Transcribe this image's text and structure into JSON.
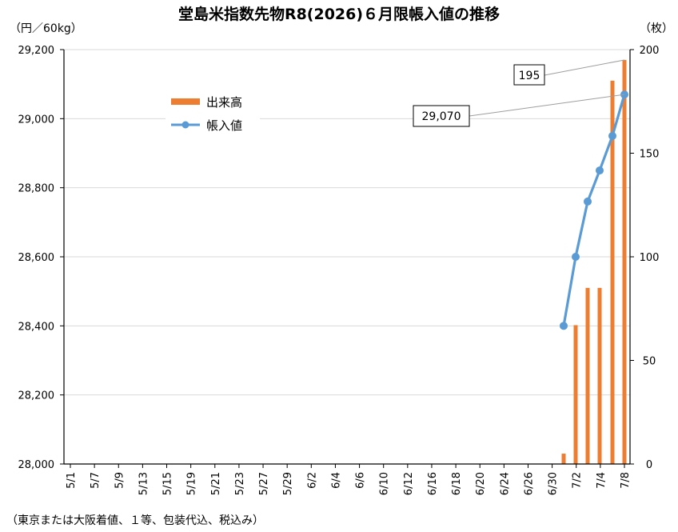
{
  "chart_data": {
    "type": "bar+line",
    "title": "堂島米指数先物R8(2026)６月限帳入値の推移",
    "left_unit": "（円／60kg）",
    "right_unit": "（枚）",
    "footnote": "（東京または大阪着値、１等、包装代込、税込み）",
    "categories": [
      "5/1",
      "5/7",
      "5/9",
      "5/13",
      "5/15",
      "5/19",
      "5/21",
      "5/23",
      "5/27",
      "5/29",
      "6/2",
      "6/4",
      "6/6",
      "6/10",
      "6/12",
      "6/16",
      "6/18",
      "6/20",
      "6/24",
      "6/26",
      "6/30",
      "7/2",
      "7/4",
      "7/8"
    ],
    "y_left": {
      "min": 28000,
      "max": 29200,
      "ticks": [
        "28,000",
        "28,200",
        "28,400",
        "28,600",
        "28,800",
        "29,000",
        "29,200"
      ]
    },
    "y_right": {
      "min": 0,
      "max": 200,
      "ticks": [
        "0",
        "50",
        "100",
        "150",
        "200"
      ]
    },
    "grid": true,
    "legend": {
      "placement": "top-left",
      "entries": [
        {
          "label": "出来高",
          "color": "#ED7D31"
        },
        {
          "label": "帳入値",
          "color": "#5B9BD5"
        }
      ]
    },
    "series": [
      {
        "name": "出来高",
        "axis": "right",
        "kind": "bar",
        "color": "#ED7D31",
        "points": [
          {
            "date": "7/1",
            "value": 5
          },
          {
            "date": "7/2",
            "value": 67
          },
          {
            "date": "7/3",
            "value": 85
          },
          {
            "date": "7/4",
            "value": 85
          },
          {
            "date": "7/7",
            "value": 185
          },
          {
            "date": "7/8",
            "value": 195
          }
        ]
      },
      {
        "name": "帳入値",
        "axis": "left",
        "kind": "line",
        "color": "#5B9BD5",
        "points": [
          {
            "date": "7/1",
            "value": 28400
          },
          {
            "date": "7/2",
            "value": 28600
          },
          {
            "date": "7/3",
            "value": 28760
          },
          {
            "date": "7/4",
            "value": 28850
          },
          {
            "date": "7/7",
            "value": 28950
          },
          {
            "date": "7/8",
            "value": 29070
          }
        ]
      }
    ],
    "annotations": [
      {
        "text": "195",
        "series": "出来高"
      },
      {
        "text": "29,070",
        "series": "帳入値"
      }
    ]
  }
}
